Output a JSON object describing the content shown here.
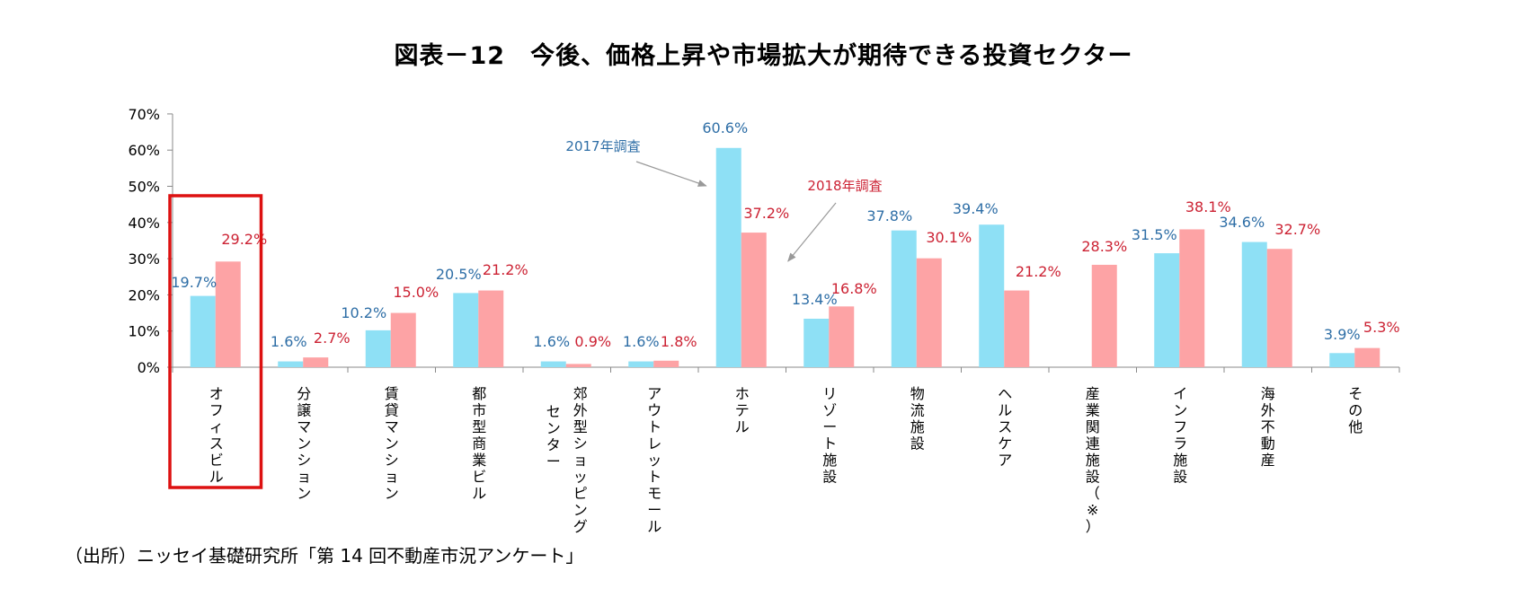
{
  "chart_data": {
    "type": "bar",
    "title": "図表－12　今後、価格上昇や市場拡大が期待できる投資セクター",
    "source": "（出所）ニッセイ基礎研究所「第 14 回不動産市況アンケート」",
    "categories": [
      {
        "label_lines": [
          "オフィスビル"
        ]
      },
      {
        "label_lines": [
          "分譲マンション"
        ]
      },
      {
        "label_lines": [
          "賃貸マンション"
        ]
      },
      {
        "label_lines": [
          "都市型商業ビル"
        ]
      },
      {
        "label_lines": [
          "郊外型ショッピング",
          "センター"
        ]
      },
      {
        "label_lines": [
          "アウトレットモール"
        ]
      },
      {
        "label_lines": [
          "ホテル"
        ]
      },
      {
        "label_lines": [
          "リゾート施設"
        ]
      },
      {
        "label_lines": [
          "物流施設"
        ]
      },
      {
        "label_lines": [
          "ヘルスケア"
        ]
      },
      {
        "label_lines": [
          "産業関連施設（※）"
        ]
      },
      {
        "label_lines": [
          "インフラ施設"
        ]
      },
      {
        "label_lines": [
          "海外不動産"
        ]
      },
      {
        "label_lines": [
          "その他"
        ]
      }
    ],
    "series": [
      {
        "name": "2017年調査",
        "color": "#8ee0f5",
        "label_color": "#2e6ea6",
        "values": [
          19.7,
          1.6,
          10.2,
          20.5,
          1.6,
          1.6,
          60.6,
          13.4,
          37.8,
          39.4,
          null,
          31.5,
          34.6,
          3.9
        ],
        "labels": [
          "19.7%",
          "1.6%",
          "10.2%",
          "20.5%",
          "1.6%",
          "1.6%",
          "60.6%",
          "13.4%",
          "37.8%",
          "39.4%",
          null,
          "31.5%",
          "34.6%",
          "3.9%"
        ]
      },
      {
        "name": "2018年調査",
        "color": "#fda3a5",
        "label_color": "#cc2233",
        "values": [
          29.2,
          2.7,
          15.0,
          21.2,
          0.9,
          1.8,
          37.2,
          16.8,
          30.1,
          21.2,
          28.3,
          38.1,
          32.7,
          5.3
        ],
        "labels": [
          "29.2%",
          "2.7%",
          "15.0%",
          "21.2%",
          "0.9%",
          "1.8%",
          "37.2%",
          "16.8%",
          "30.1%",
          "21.2%",
          "28.3%",
          "38.1%",
          "32.7%",
          "5.3%"
        ]
      }
    ],
    "yticks": [
      "0%",
      "10%",
      "20%",
      "30%",
      "40%",
      "50%",
      "60%",
      "70%"
    ],
    "ylim": [
      0,
      70
    ],
    "highlight_category": 0,
    "annotations": [
      {
        "text": "2017年調査",
        "points_to": "ホテル 2017年調査"
      },
      {
        "text": "2018年調査",
        "points_to": "ホテル 2018年調査"
      }
    ],
    "highlight_color": "#dd1111",
    "axis_color": "#888888"
  }
}
